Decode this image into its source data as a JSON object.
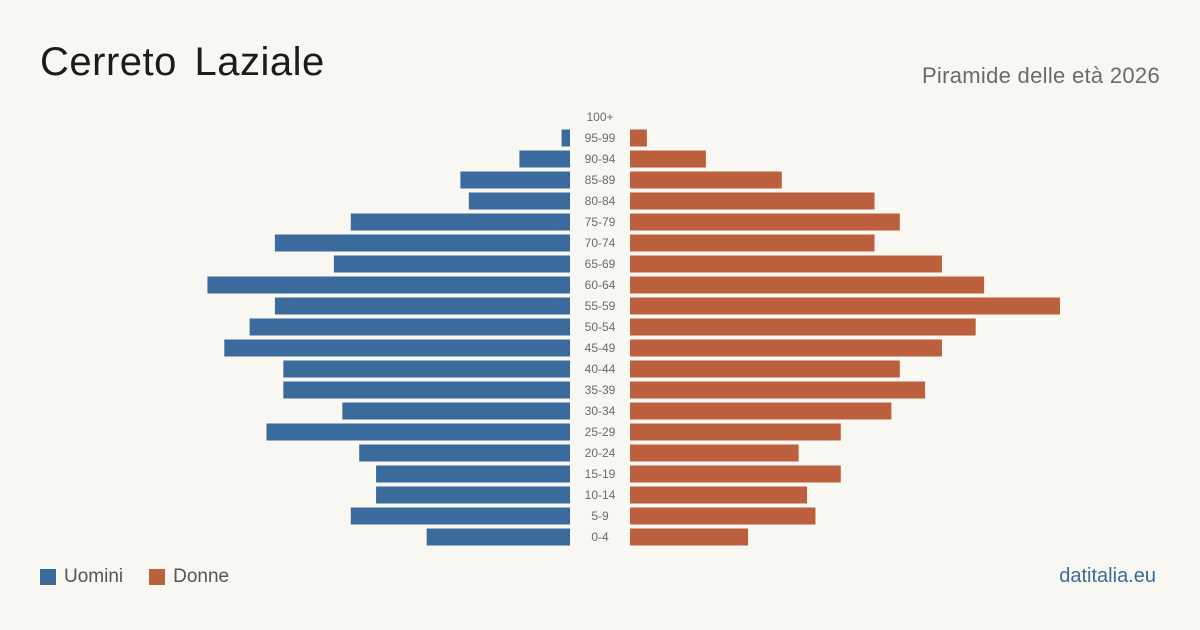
{
  "title": "Cerreto Laziale",
  "subtitle": "Piramide delle età 2026",
  "brand": "datitalia.eu",
  "colors": {
    "male": "#3b6a9c",
    "female": "#bb5f3d",
    "background": "#f9f7f2"
  },
  "legend": [
    {
      "label": "Uomini",
      "color": "#3b6a9c"
    },
    {
      "label": "Donne",
      "color": "#bb5f3d"
    }
  ],
  "chart_data": {
    "type": "bar",
    "orientation": "horizontal-pyramid",
    "categories": [
      "100+",
      "95-99",
      "90-94",
      "85-89",
      "80-84",
      "75-79",
      "70-74",
      "65-69",
      "60-64",
      "55-59",
      "50-54",
      "45-49",
      "40-44",
      "35-39",
      "30-34",
      "25-29",
      "20-24",
      "15-19",
      "10-14",
      "5-9",
      "0-4"
    ],
    "series": [
      {
        "name": "Uomini",
        "values": [
          0,
          1,
          6,
          13,
          12,
          26,
          35,
          28,
          43,
          35,
          38,
          41,
          34,
          34,
          27,
          36,
          25,
          23,
          23,
          26,
          17
        ]
      },
      {
        "name": "Donne",
        "values": [
          0,
          2,
          9,
          18,
          29,
          32,
          29,
          37,
          42,
          51,
          41,
          37,
          32,
          35,
          31,
          25,
          20,
          25,
          21,
          22,
          14
        ]
      }
    ],
    "legend_position": "bottom-left",
    "grid": false
  }
}
